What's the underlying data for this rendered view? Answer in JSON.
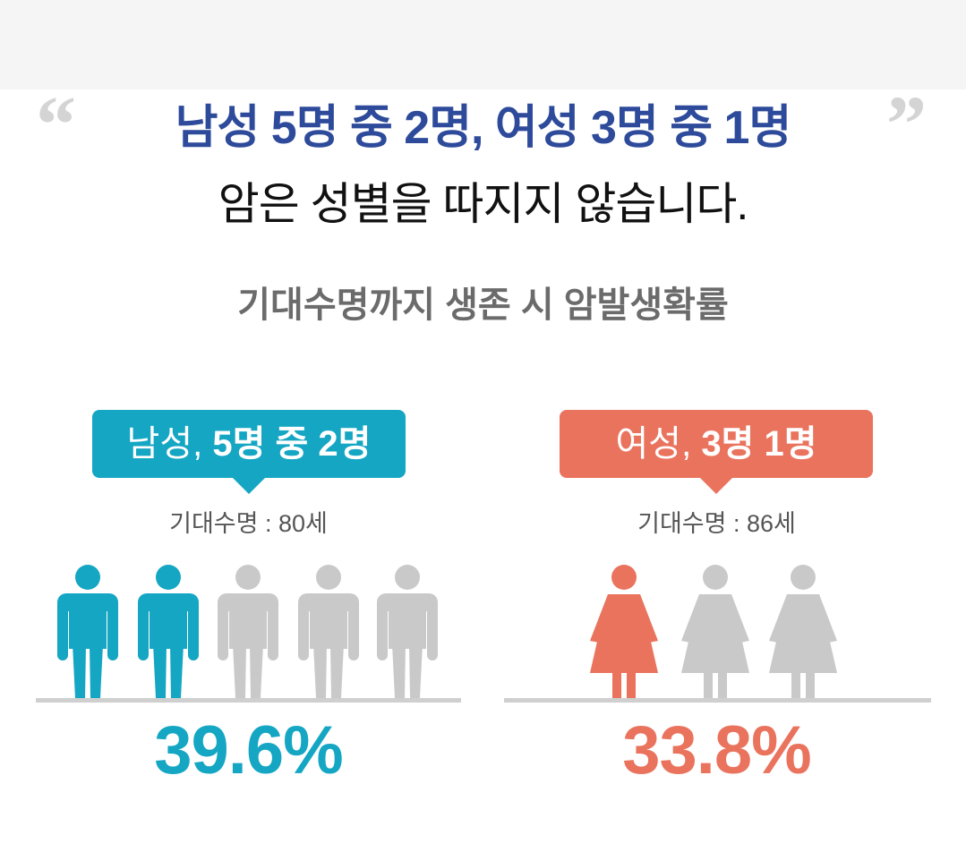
{
  "header": {
    "quote_open": "“",
    "quote_close": "”",
    "highlight": "남성 5명 중 2명, 여성 3명 중 1명",
    "statement": "암은 성별을 따지지 않습니다.",
    "subtitle": "기대수명까지 생존 시 암발생확률"
  },
  "groups": [
    {
      "label": "남성,",
      "ratio": "5명 중 2명",
      "life_expectancy": "기대수명 : 80세",
      "percentage": "39.6%"
    },
    {
      "label": "여성,",
      "ratio": "3명 1명",
      "life_expectancy": "기대수명 : 86세",
      "percentage": "33.8%"
    }
  ]
}
